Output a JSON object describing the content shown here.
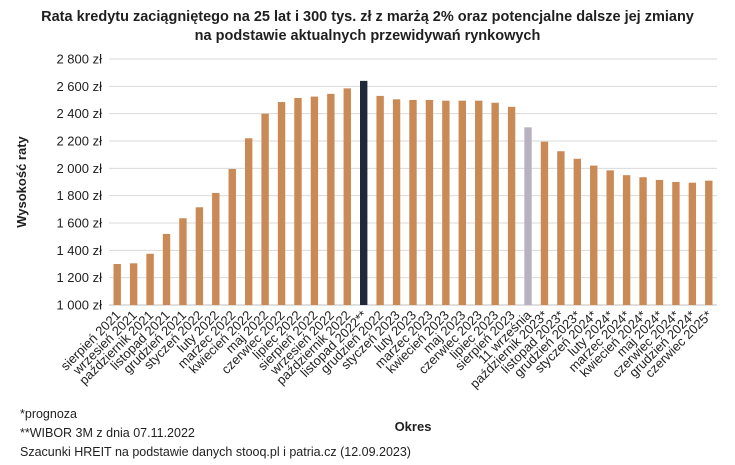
{
  "chart_data": {
    "type": "bar",
    "title_lines": [
      "Rata kredytu zaciągniętego na 25 lat i 300 tys. zł z marżą 2% oraz potencjalne dalsze jej zmiany",
      "na podstawie aktualnych przewidywań rynkowych"
    ],
    "xlabel": "Okres",
    "ylabel": "Wysokość raty",
    "ylim": [
      1000,
      2800
    ],
    "y_ticks": [
      "1 000 zł",
      "1 200 zł",
      "1 400 zł",
      "1 600 zł",
      "1 800 zł",
      "2 000 zł",
      "2 200 zł",
      "2 400 zł",
      "2 600 zł",
      "2 800 zł"
    ],
    "grid": true,
    "categories": [
      "sierpień 2021",
      "wrzesień 2021",
      "październik 2021",
      "listopad 2021",
      "grudzień 2021",
      "styczeń 2022",
      "luty 2022",
      "marzec 2022",
      "kwiecień 2022",
      "maj 2022",
      "czerwiec 2022",
      "lipiec 2022",
      "sierpień 2022",
      "wrzesień 2022",
      "październik 2022",
      "listopad 2022**",
      "grudzień 2022",
      "styczeń 2023",
      "luty 2023",
      "marzec 2023",
      "kwiecień 2023",
      "maj 2023",
      "czerwiec 2023",
      "lipiec 2023",
      "sierpień 2023",
      "11 września",
      "październik 2023*",
      "listopad 2023*",
      "grudzień 2023*",
      "styczeń 2024*",
      "luty 2024*",
      "marzec 2024*",
      "kwiecień 2024*",
      "maj 2024*",
      "czerwiec 2024*",
      "grudzień 2024*",
      "czerwiec 2025*"
    ],
    "values": [
      1300,
      1305,
      1375,
      1520,
      1635,
      1715,
      1820,
      1995,
      2220,
      2400,
      2485,
      2515,
      2525,
      2545,
      2585,
      2640,
      2530,
      2505,
      2500,
      2500,
      2495,
      2495,
      2495,
      2480,
      2450,
      2300,
      2195,
      2125,
      2070,
      2020,
      1985,
      1950,
      1935,
      1915,
      1900,
      1895,
      1910
    ],
    "highlight_indices": {
      "15": "current",
      "25": "latest"
    },
    "colors": {
      "default": "#C98A55",
      "current": "#1F2937",
      "latest": "#B8B2C0",
      "grid": "#D9D9D9",
      "axis": "#BFBFBF"
    }
  },
  "notes": [
    "*prognoza",
    "**WIBOR 3M z dnia 07.11.2022",
    "Szacunki HREIT na podstawie danych stooq.pl i patria.cz (12.09.2023)"
  ]
}
